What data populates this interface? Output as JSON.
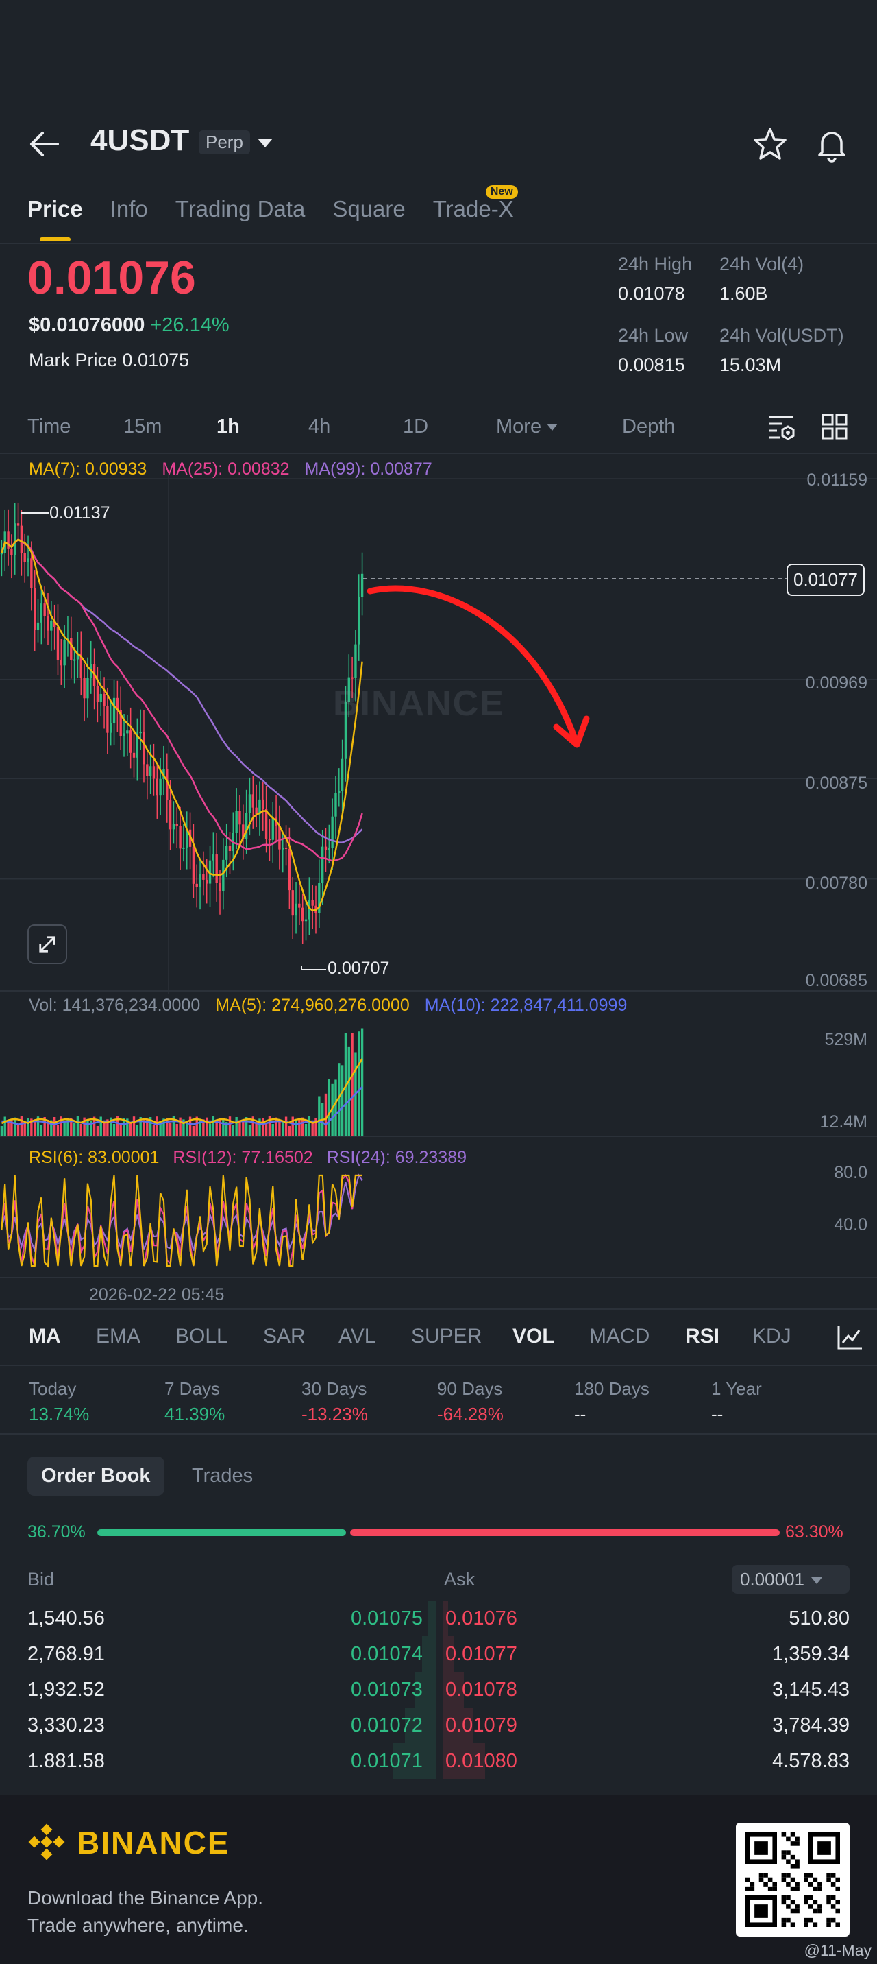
{
  "header": {
    "pair": "4USDT",
    "badge": "Perp"
  },
  "tabs": [
    {
      "label": "Price"
    },
    {
      "label": "Info"
    },
    {
      "label": "Trading Data"
    },
    {
      "label": "Square"
    },
    {
      "label": "Trade-X",
      "badge": "New"
    }
  ],
  "price": {
    "last": "0.01076",
    "usd": "$0.01076000",
    "change": "+26.14%",
    "mark_label": "Mark Price",
    "mark_value": "0.01075"
  },
  "stats": {
    "high_label": "24h High",
    "high_value": "0.01078",
    "vol_base_label": "24h Vol(4)",
    "vol_base_value": "1.60B",
    "low_label": "24h Low",
    "low_value": "0.00815",
    "vol_quote_label": "24h Vol(USDT)",
    "vol_quote_value": "15.03M"
  },
  "intervals": [
    "Time",
    "15m",
    "1h",
    "4h",
    "1D",
    "More",
    "Depth"
  ],
  "chart": {
    "ma7": "MA(7): 0.00933",
    "ma25": "MA(25): 0.00832",
    "ma99": "MA(99): 0.00877",
    "axis": [
      "0.01159",
      "0.00969",
      "0.00875",
      "0.00780",
      "0.00685"
    ],
    "last_tag": "0.01077",
    "high_marker": "0.01137",
    "low_marker": "0.00707",
    "watermark": "BINANCE",
    "vol": "Vol: 141,376,234.0000",
    "vol_ma5": "MA(5): 274,960,276.0000",
    "vol_ma10": "MA(10): 222,847,411.0999",
    "vol_axis_top": "529M",
    "vol_axis_bottom": "12.4M",
    "rsi6": "RSI(6): 83.00001",
    "rsi12": "RSI(12): 77.16502",
    "rsi24": "RSI(24): 69.23389",
    "rsi_axis_top": "80.0",
    "rsi_axis_bottom": "40.0",
    "date": "2026-02-22 05:45",
    "colors": {
      "up": "#2ebd85",
      "down": "#f6465d",
      "ma7": "#f0b90b",
      "ma25": "#e84393",
      "ma99": "#9b6fd6"
    }
  },
  "chart_data": {
    "type": "candlestick",
    "interval": "1h",
    "y_range": [
      0.00685,
      0.01159
    ],
    "high": 0.01137,
    "low": 0.00707,
    "last": 0.01077,
    "indicators": {
      "MA7": 0.00933,
      "MA25": 0.00832,
      "MA99": 0.00877
    }
  },
  "indicators": [
    "MA",
    "EMA",
    "BOLL",
    "SAR",
    "AVL",
    "SUPER",
    "VOL",
    "MACD",
    "RSI",
    "KDJ"
  ],
  "periods": [
    {
      "label": "Today",
      "value": "13.74%"
    },
    {
      "label": "7 Days",
      "value": "41.39%"
    },
    {
      "label": "30 Days",
      "value": "-13.23%"
    },
    {
      "label": "90 Days",
      "value": "-64.28%"
    },
    {
      "label": "180 Days",
      "value": "--"
    },
    {
      "label": "1 Year",
      "value": "--"
    }
  ],
  "orderbook": {
    "tab_book": "Order Book",
    "tab_trades": "Trades",
    "buy_ratio": "36.70%",
    "sell_ratio": "63.30%",
    "buy_ratio_value": 0.367,
    "bid_label": "Bid",
    "ask_label": "Ask",
    "precision": "0.00001",
    "rows": [
      {
        "bid_qty": "1,540.56",
        "bid_price": "0.01075",
        "ask_price": "0.01076",
        "ask_qty": "510.80"
      },
      {
        "bid_qty": "2,768.91",
        "bid_price": "0.01074",
        "ask_price": "0.01077",
        "ask_qty": "1,359.34"
      },
      {
        "bid_qty": "1,932.52",
        "bid_price": "0.01073",
        "ask_price": "0.01078",
        "ask_qty": "3,145.43"
      },
      {
        "bid_qty": "3,330.23",
        "bid_price": "0.01072",
        "ask_price": "0.01079",
        "ask_qty": "3,784.39"
      },
      {
        "bid_qty": "1.881.58",
        "bid_price": "0.01071",
        "ask_price": "0.01080",
        "ask_qty": "4.578.83"
      }
    ]
  },
  "footer": {
    "brand": "BINANCE",
    "line1": "Download the Binance App.",
    "line2": "Trade anywhere, anytime.",
    "credit": "@11-May"
  }
}
